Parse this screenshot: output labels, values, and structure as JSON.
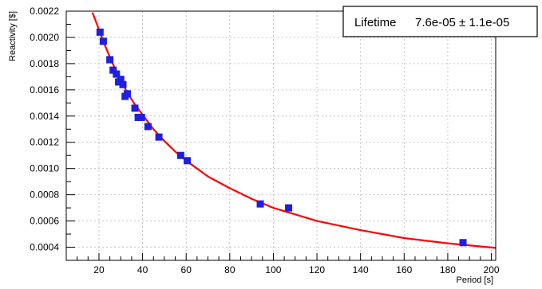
{
  "chart_data": {
    "type": "scatter",
    "title": "",
    "xlabel": "Period [s]",
    "ylabel": "Reactivity [$]",
    "xlim": [
      5,
      202
    ],
    "ylim": [
      0.0003,
      0.0022
    ],
    "x_ticks": [
      20,
      40,
      60,
      80,
      100,
      120,
      140,
      160,
      180,
      200
    ],
    "y_ticks": [
      0.0004,
      0.0006,
      0.0008,
      0.001,
      0.0012,
      0.0014,
      0.0016,
      0.0018,
      0.002,
      0.0022
    ],
    "grid": true,
    "colors": {
      "points": "#1f1fe0",
      "fit": "#ff0000",
      "grid": "#b8b8b8"
    },
    "series": [
      {
        "kind": "points",
        "x": [
          20.5,
          22,
          25,
          26.5,
          28,
          29,
          30,
          31,
          32,
          33,
          36.5,
          38,
          39.5,
          42.5,
          47.5,
          57.5,
          60.5,
          94,
          107,
          187
        ],
        "y": [
          0.00204,
          0.00197,
          0.00183,
          0.00175,
          0.00172,
          0.00166,
          0.00168,
          0.00164,
          0.00155,
          0.00157,
          0.00146,
          0.00139,
          0.00139,
          0.00132,
          0.00124,
          0.0011,
          0.00106,
          0.00073,
          0.0007,
          0.000435
        ]
      },
      {
        "kind": "fit",
        "x": [
          17,
          20,
          22,
          25,
          28,
          30,
          33,
          36,
          40,
          45,
          50,
          55,
          60,
          70,
          80,
          90,
          100,
          110,
          120,
          140,
          160,
          180,
          202
        ],
        "y": [
          0.00219,
          0.00206,
          0.00197,
          0.00185,
          0.00174,
          0.00167,
          0.00158,
          0.0015,
          0.00141,
          0.0013,
          0.00121,
          0.00113,
          0.00106,
          0.00094,
          0.00085,
          0.00077,
          0.0007,
          0.00065,
          0.0006,
          0.00053,
          0.00047,
          0.00043,
          0.000395
        ]
      }
    ],
    "legend": {
      "label": "Lifetime",
      "value": "7.6e-05 ± 1.1e-05",
      "position": "top-right"
    }
  }
}
